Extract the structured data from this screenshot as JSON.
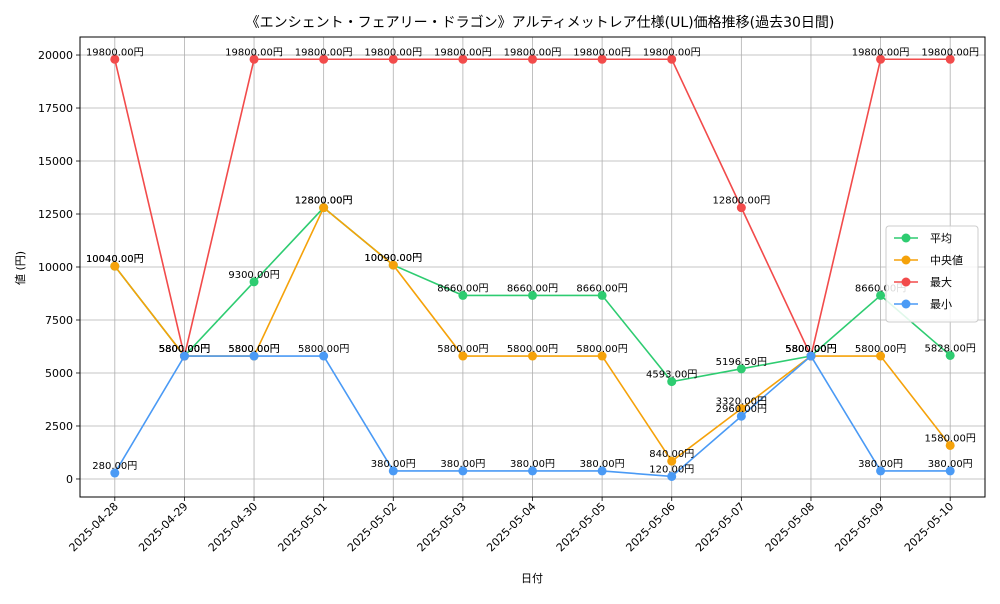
{
  "chart_data": {
    "type": "line",
    "title": "《エンシェント・フェアリー・ドラゴン》アルティメットレア仕様(UL)価格推移(過去30日間)",
    "xlabel": "日付",
    "ylabel": "値 (円)",
    "ylim": [
      -850,
      20850
    ],
    "yticks": [
      0,
      2500,
      5000,
      7500,
      10000,
      12500,
      15000,
      17500,
      20000
    ],
    "grid": true,
    "legend_position": "right",
    "label_suffix": "円",
    "categories": [
      "2025-04-28",
      "2025-04-29",
      "2025-04-30",
      "2025-05-01",
      "2025-05-02",
      "2025-05-03",
      "2025-05-04",
      "2025-05-05",
      "2025-05-06",
      "2025-05-07",
      "2025-05-08",
      "2025-05-09",
      "2025-05-10"
    ],
    "series": [
      {
        "name": "平均",
        "color": "#2ecc71",
        "values": [
          10040,
          5800,
          9300,
          12800,
          10090,
          8660,
          8660,
          8660,
          4593,
          5196.5,
          5800,
          8660,
          5828
        ]
      },
      {
        "name": "中央値",
        "color": "#f5a20a",
        "values": [
          10040,
          5800,
          5800,
          12800,
          10090,
          5800,
          5800,
          5800,
          840,
          3320,
          5800,
          5800,
          1580
        ]
      },
      {
        "name": "最大",
        "color": "#f24b4b",
        "values": [
          19800,
          5800,
          19800,
          19800,
          19800,
          19800,
          19800,
          19800,
          19800,
          12800,
          5800,
          19800,
          19800
        ]
      },
      {
        "name": "最小",
        "color": "#4a9af5",
        "values": [
          280,
          5800,
          5800,
          5800,
          380,
          380,
          380,
          380,
          120,
          2960,
          5800,
          380,
          380
        ]
      }
    ]
  }
}
